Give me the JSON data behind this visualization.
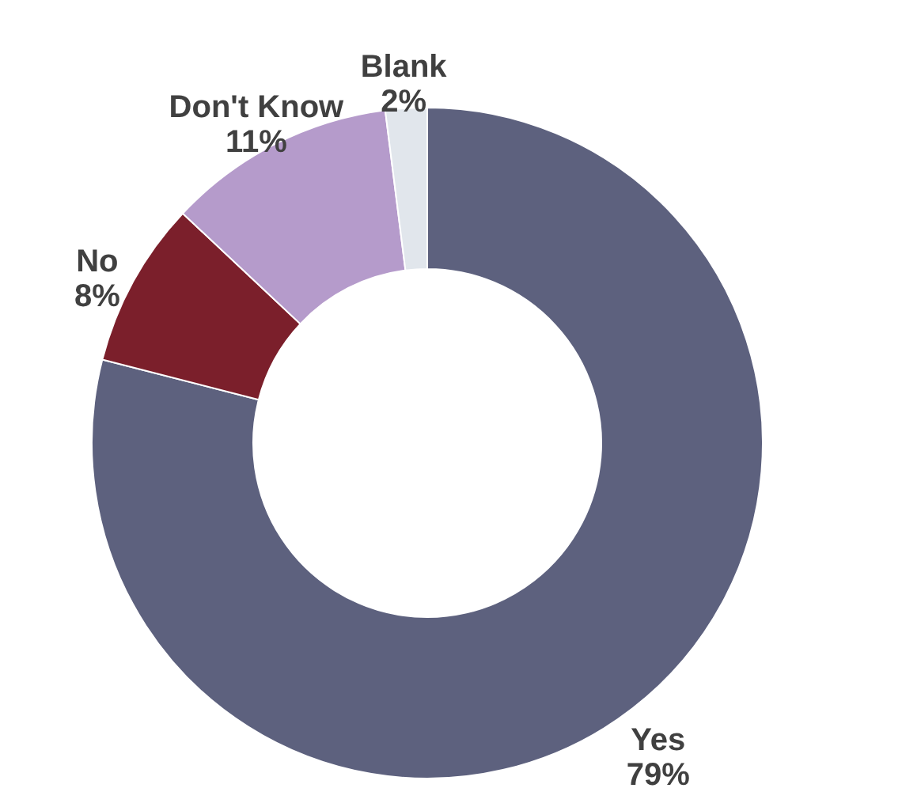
{
  "chart_data": {
    "type": "donut",
    "categories": [
      "Yes",
      "No",
      "Don't Know",
      "Blank"
    ],
    "values": [
      79,
      8,
      11,
      2
    ],
    "value_labels": [
      "79%",
      "8%",
      "11%",
      "2%"
    ],
    "colors": [
      "#5d617e",
      "#7b1f2b",
      "#b59bcb",
      "#e1e6ec"
    ]
  }
}
